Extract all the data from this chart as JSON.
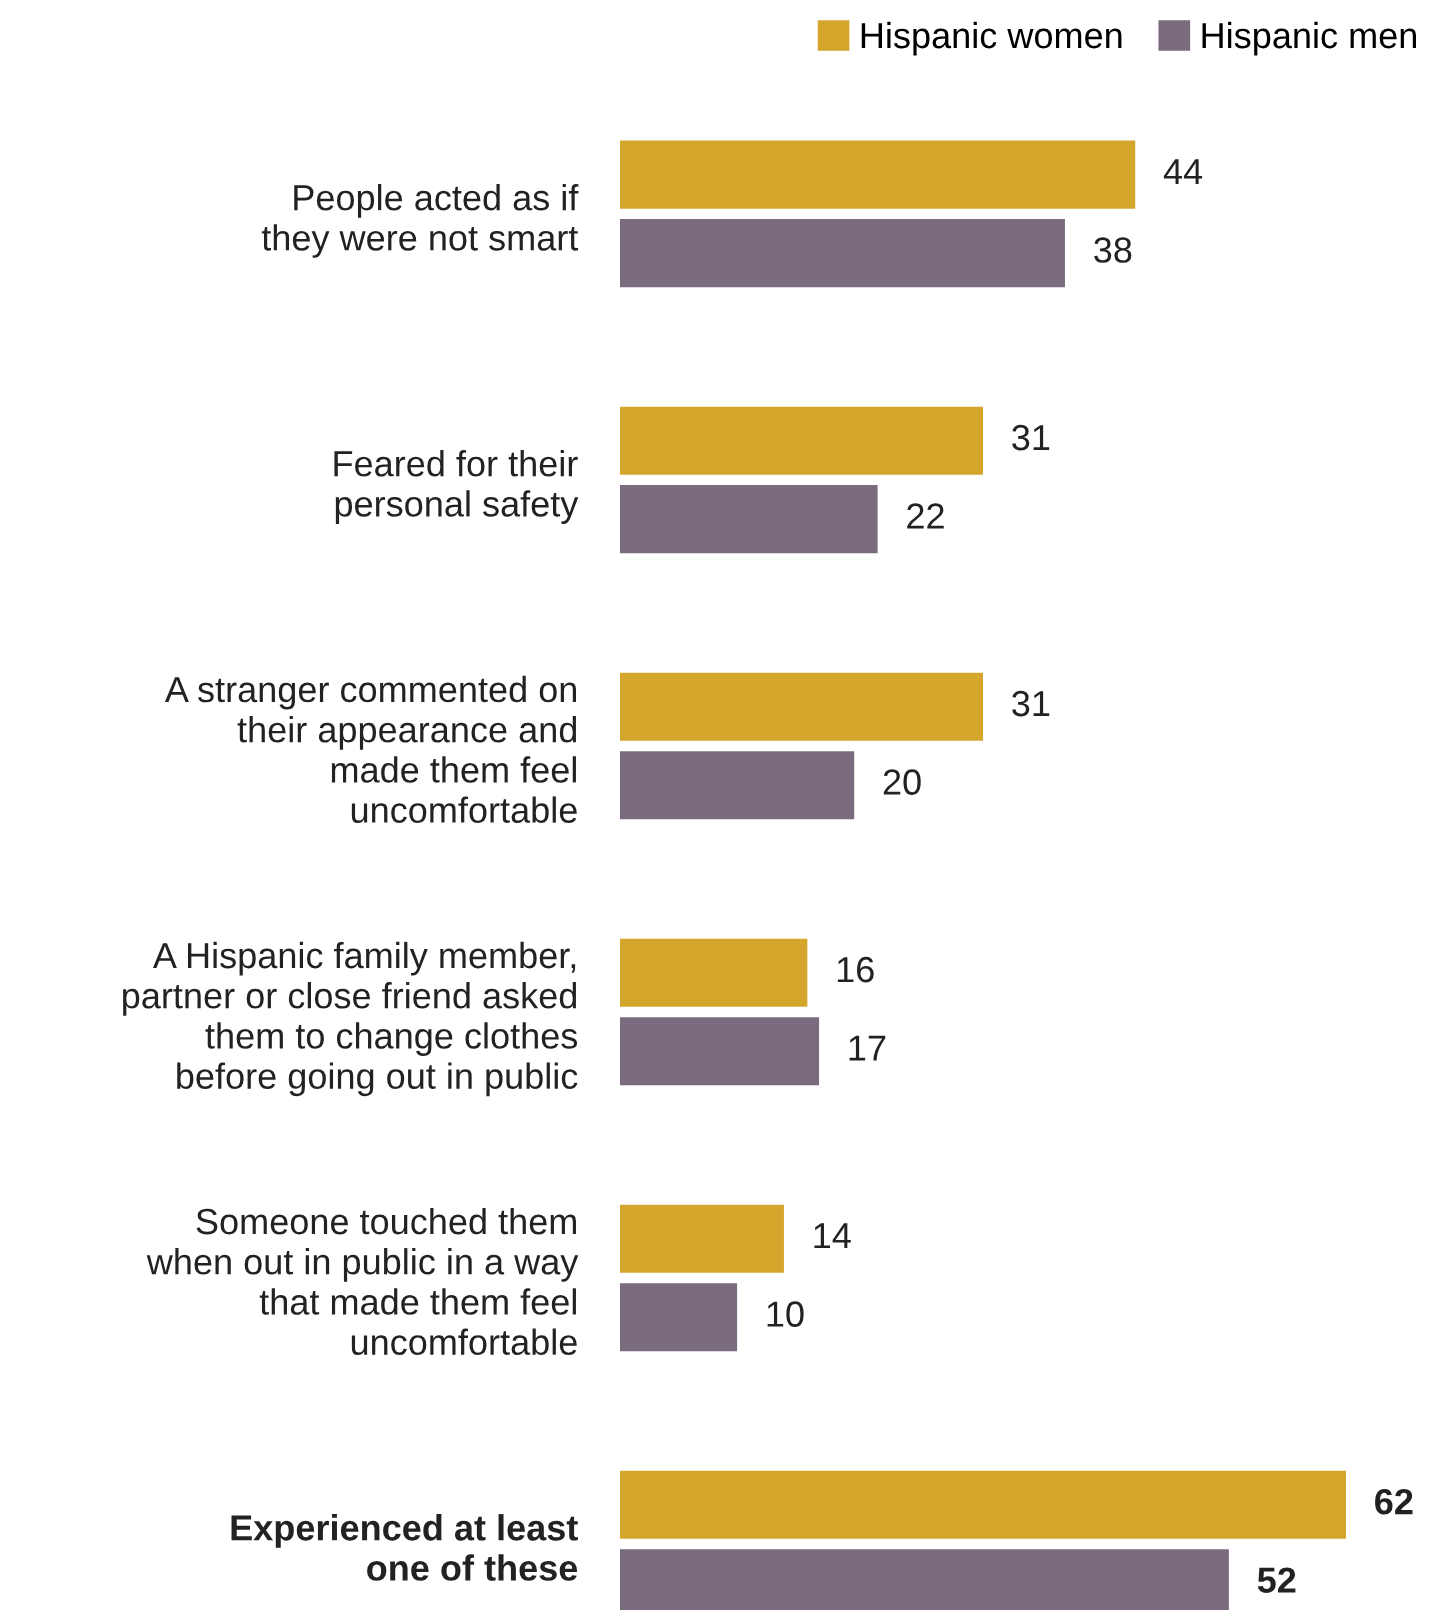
{
  "chart_data": {
    "type": "bar",
    "orientation": "horizontal",
    "data_labels": true,
    "legend": "top right",
    "grid": false,
    "categories": [
      "People acted as if\nthey were not smart",
      "Feared for their\npersonal safety",
      "A stranger commented on\ntheir appearance and\nmade them feel\nuncomfortable",
      "A Hispanic family member,\npartner or close friend asked\nthem to change clothes\nbefore going out in public",
      "Someone touched them\nwhen out in public in a way\nthat made them feel\nuncomfortable",
      "Experienced at least\none of these"
    ],
    "series": [
      {
        "name": "Hispanic women",
        "color": "#d4a72c",
        "values": [
          44,
          31,
          31,
          16,
          14,
          62
        ]
      },
      {
        "name": "Hispanic men",
        "color": "#7a6b7e",
        "values": [
          38,
          22,
          20,
          17,
          10,
          52
        ]
      }
    ]
  }
}
